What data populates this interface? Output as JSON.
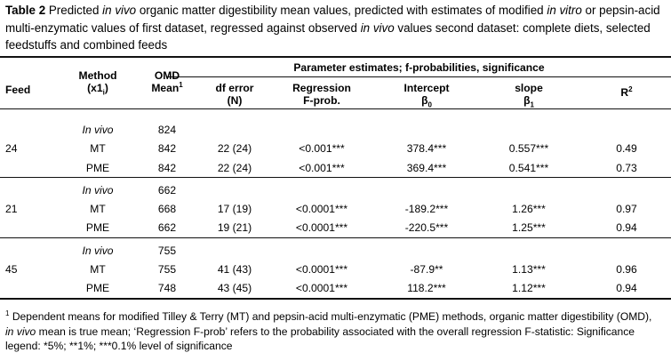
{
  "caption": {
    "label": "Table 2",
    "p1": " Predicted ",
    "i1": "in vivo",
    "p2": " organic matter digestibility mean values, predicted with estimates of modified ",
    "i2": "in vitro",
    "p3": " or pepsin-acid multi-enzymatic values of first dataset, regressed against observed ",
    "i3": "in vivo",
    "p4": " values second dataset: complete diets, selected feedstuffs and combined feeds"
  },
  "header": {
    "feed": "Feed",
    "method_l1": "Method",
    "method_l2": "(x1",
    "method_sub": "i",
    "method_close": ")",
    "omd_l1": "OMD",
    "omd_l2": "Mean",
    "omd_sup": "1",
    "group": "Parameter estimates; f-probabilities, significance",
    "df_l1": "df error",
    "df_l2": "(N)",
    "reg_l1": "Regression",
    "reg_l2": "F-prob.",
    "int_l1": "Intercept",
    "int_l2": "β",
    "int_sub": "0",
    "slope_l1": "slope",
    "slope_l2": "β",
    "slope_sub": "1",
    "r2": "R",
    "r2_sup": "2"
  },
  "rows": [
    {
      "feed": "",
      "method": "In vivo",
      "omd": "824",
      "df": "",
      "reg": "",
      "intercept": "",
      "slope": "",
      "r2": ""
    },
    {
      "feed": "24",
      "method": "MT",
      "omd": "842",
      "df": "22 (24)",
      "reg": "<0.001***",
      "intercept": "378.4***",
      "slope": "0.557***",
      "r2": "0.49"
    },
    {
      "feed": "",
      "method": "PME",
      "omd": "842",
      "df": "22 (24)",
      "reg": "<0.001***",
      "intercept": "369.4***",
      "slope": "0.541***",
      "r2": "0.73"
    },
    {
      "feed": "",
      "method": "In vivo",
      "omd": "662",
      "df": "",
      "reg": "",
      "intercept": "",
      "slope": "",
      "r2": ""
    },
    {
      "feed": "21",
      "method": "MT",
      "omd": "668",
      "df": "17 (19)",
      "reg": "<0.0001***",
      "intercept": "-189.2***",
      "slope": "1.26***",
      "r2": "0.97"
    },
    {
      "feed": "",
      "method": "PME",
      "omd": "662",
      "df": "19 (21)",
      "reg": "<0.0001***",
      "intercept": "-220.5***",
      "slope": "1.25***",
      "r2": "0.94"
    },
    {
      "feed": "",
      "method": "In vivo",
      "omd": "755",
      "df": "",
      "reg": "",
      "intercept": "",
      "slope": "",
      "r2": ""
    },
    {
      "feed": "45",
      "method": "MT",
      "omd": "755",
      "df": "41 (43)",
      "reg": "<0.0001***",
      "intercept": "-87.9**",
      "slope": "1.13***",
      "r2": "0.96"
    },
    {
      "feed": "",
      "method": "PME",
      "omd": "748",
      "df": "43 (45)",
      "reg": "<0.0001***",
      "intercept": "118.2***",
      "slope": "1.12***",
      "r2": "0.94"
    }
  ],
  "footnote": {
    "sup": "1",
    "p1": " Dependent means for modified Tilley & Terry (MT) and pepsin-acid multi-enzymatic (PME) methods, organic matter digestibility (OMD), ",
    "i1": "in vivo",
    "p2": " mean is true mean; ‘Regression F-prob’ refers to the probability associated with the overall regression F-statistic: Significance legend: *5%; **1%; ***0.1% level of significance"
  }
}
